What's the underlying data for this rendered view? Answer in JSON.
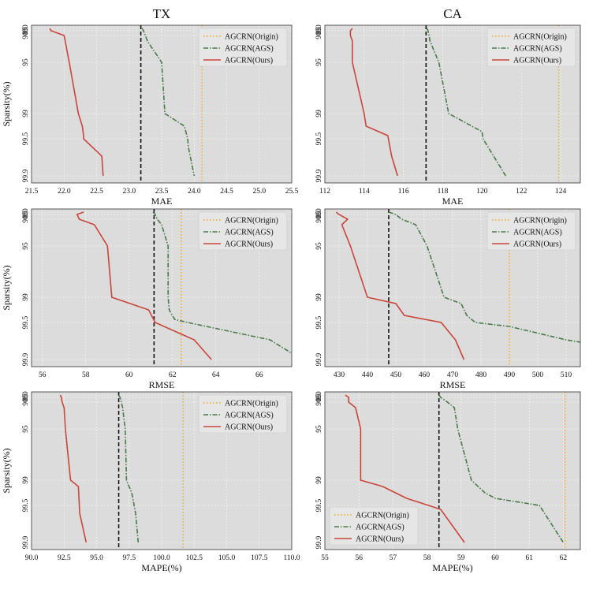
{
  "colors": {
    "origin": "#f5a623",
    "ags": "#4a7a4a",
    "ours": "#c9453a",
    "baseline": "#111111"
  },
  "chart_data": [
    {
      "type": "line",
      "name": "tx-mae",
      "title": "TX",
      "xlabel": "MAE",
      "ylabel": "Sparsity(%)",
      "xlim": [
        21.5,
        25.5
      ],
      "xticks": [
        "21.5",
        "22.0",
        "22.5",
        "23.0",
        "23.5",
        "24.0",
        "24.5",
        "25.0",
        "25.5"
      ],
      "yticks": [
        "80",
        "85",
        "90",
        "95",
        "99",
        "99.5",
        "99.9"
      ],
      "legend_loc": "top-right",
      "series": [
        {
          "name": "AGCRN(Origin)",
          "style": "dotted",
          "vline": 24.12
        },
        {
          "name": "AGCRN(AGS)",
          "style": "dashdot",
          "x": [
            23.2,
            23.22,
            23.25,
            23.28,
            23.5,
            23.55,
            23.85,
            23.9,
            23.91,
            24.0
          ],
          "y": [
            80,
            85,
            90,
            92,
            95,
            99,
            99.2,
            99.5,
            99.6,
            99.9
          ]
        },
        {
          "name": "AGCRN(Ours)",
          "style": "solid",
          "x": [
            21.78,
            21.8,
            22.0,
            22.08,
            22.22,
            22.28,
            22.3,
            22.3,
            22.58,
            22.6
          ],
          "y": [
            80,
            85,
            90,
            95,
            99,
            99.2,
            99.4,
            99.5,
            99.7,
            99.9
          ]
        }
      ],
      "baseline_x": 23.18
    },
    {
      "type": "line",
      "name": "ca-mae",
      "title": "CA",
      "xlabel": "MAE",
      "ylabel": "",
      "xlim": [
        112,
        125
      ],
      "xticks": [
        "112",
        "114",
        "116",
        "118",
        "120",
        "122",
        "124"
      ],
      "yticks": [
        "80",
        "85",
        "90",
        "95",
        "99",
        "99.5",
        "99.9"
      ],
      "legend_loc": "top-right",
      "series": [
        {
          "name": "AGCRN(Origin)",
          "style": "dotted",
          "vline": 123.9
        },
        {
          "name": "AGCRN(AGS)",
          "style": "dashdot",
          "x": [
            117.2,
            117.25,
            117.3,
            117.35,
            117.8,
            118.3,
            120.0,
            120.05,
            121.2
          ],
          "y": [
            80,
            85,
            90,
            92,
            95,
            99,
            99.3,
            99.5,
            99.9
          ]
        },
        {
          "name": "AGCRN(Ours)",
          "style": "solid",
          "x": [
            113.4,
            113.3,
            113.3,
            113.4,
            113.4,
            114.0,
            114.1,
            115.2,
            115.4,
            115.7
          ],
          "y": [
            80,
            85,
            90,
            92,
            95,
            99,
            99.2,
            99.4,
            99.7,
            99.9
          ]
        }
      ],
      "baseline_x": 117.15
    },
    {
      "type": "line",
      "name": "tx-rmse",
      "title": "",
      "xlabel": "RMSE",
      "ylabel": "Sparsity(%)",
      "xlim": [
        55.5,
        67.5
      ],
      "xticks": [
        "56",
        "58",
        "60",
        "62",
        "64",
        "66"
      ],
      "yticks": [
        "80",
        "85",
        "90",
        "95",
        "99",
        "99.5",
        "99.9"
      ],
      "legend_loc": "top-right",
      "series": [
        {
          "name": "AGCRN(Origin)",
          "style": "dotted",
          "vline": 62.4
        },
        {
          "name": "AGCRN(AGS)",
          "style": "dashdot",
          "x": [
            61.1,
            61.2,
            61.3,
            61.5,
            61.8,
            61.8,
            61.85,
            62.1,
            62.7,
            66.5,
            67.6
          ],
          "y": [
            80,
            85,
            90,
            92,
            95,
            99,
            99.2,
            99.4,
            99.5,
            99.7,
            99.85
          ]
        },
        {
          "name": "AGCRN(Ours)",
          "style": "solid",
          "x": [
            57.9,
            57.6,
            57.7,
            58.4,
            59.0,
            59.2,
            60.9,
            61.2,
            63.0,
            63.8
          ],
          "y": [
            80,
            85,
            90,
            92,
            95,
            99,
            99.2,
            99.5,
            99.7,
            99.9
          ]
        }
      ],
      "baseline_x": 61.15
    },
    {
      "type": "line",
      "name": "ca-rmse",
      "title": "",
      "xlabel": "RMSE",
      "ylabel": "",
      "xlim": [
        425,
        515
      ],
      "xticks": [
        "430",
        "440",
        "450",
        "460",
        "470",
        "480",
        "490",
        "500",
        "510"
      ],
      "yticks": [
        "80",
        "85",
        "90",
        "95",
        "99",
        "99.5",
        "99.9"
      ],
      "legend_loc": "top-right",
      "series": [
        {
          "name": "AGCRN(Origin)",
          "style": "dotted",
          "vline": 490
        },
        {
          "name": "AGCRN(AGS)",
          "style": "dashdot",
          "x": [
            447.5,
            450,
            452,
            457,
            461,
            467,
            473,
            475,
            478,
            490,
            510,
            516
          ],
          "y": [
            80,
            85,
            90,
            92,
            95,
            99,
            99.1,
            99.3,
            99.5,
            99.55,
            99.7,
            99.75
          ]
        },
        {
          "name": "AGCRN(Ours)",
          "style": "solid",
          "x": [
            429,
            430,
            433,
            431,
            434,
            440,
            450,
            453,
            466,
            471,
            474
          ],
          "y": [
            80,
            85,
            90,
            92,
            95,
            99,
            99.1,
            99.3,
            99.5,
            99.7,
            99.9
          ]
        }
      ],
      "baseline_x": 447.5
    },
    {
      "type": "line",
      "name": "tx-mape",
      "title": "",
      "xlabel": "MAPE(%)",
      "ylabel": "Sparsity(%)",
      "xlim": [
        90,
        110
      ],
      "xticks": [
        "90.0",
        "92.5",
        "95.0",
        "97.5",
        "100.0",
        "102.5",
        "105.0",
        "107.5",
        "110.0"
      ],
      "yticks": [
        "80",
        "85",
        "90",
        "95",
        "99",
        "99.5",
        "99.9"
      ],
      "legend_loc": "top-right",
      "series": [
        {
          "name": "AGCRN(Origin)",
          "style": "dotted",
          "vline": 101.65
        },
        {
          "name": "AGCRN(AGS)",
          "style": "dashdot",
          "x": [
            96.7,
            96.8,
            96.9,
            97.0,
            97.2,
            97.3,
            97.7,
            98.0,
            98.2
          ],
          "y": [
            80,
            85,
            90,
            92,
            95,
            99,
            99.2,
            99.6,
            99.9
          ]
        },
        {
          "name": "AGCRN(Ours)",
          "style": "solid",
          "x": [
            92.2,
            92.3,
            92.35,
            92.5,
            92.6,
            93.0,
            93.6,
            93.7,
            94.2
          ],
          "y": [
            80,
            85,
            90,
            92,
            95,
            99,
            99.1,
            99.6,
            99.9
          ]
        }
      ],
      "baseline_x": 96.7
    },
    {
      "type": "line",
      "name": "ca-mape",
      "title": "",
      "xlabel": "MAPE(%)",
      "ylabel": "",
      "xlim": [
        55,
        62.5
      ],
      "xticks": [
        "55",
        "56",
        "57",
        "58",
        "59",
        "60",
        "61",
        "62"
      ],
      "yticks": [
        "80",
        "85",
        "90",
        "95",
        "99",
        "99.5",
        "99.9"
      ],
      "legend_loc": "bottom-left",
      "series": [
        {
          "name": "AGCRN(Origin)",
          "style": "dotted",
          "vline": 62.05
        },
        {
          "name": "AGCRN(AGS)",
          "style": "dashdot",
          "x": [
            58.35,
            58.4,
            58.6,
            58.8,
            58.9,
            59.3,
            59.7,
            60.0,
            61.3,
            62.0
          ],
          "y": [
            80,
            85,
            90,
            92,
            95,
            99,
            99.2,
            99.3,
            99.5,
            99.9
          ]
        },
        {
          "name": "AGCRN(Ours)",
          "style": "solid",
          "x": [
            55.6,
            55.7,
            55.7,
            55.9,
            56.05,
            56.05,
            56.7,
            57.4,
            58.4,
            59.1
          ],
          "y": [
            80,
            85,
            90,
            92,
            95,
            99,
            99.1,
            99.3,
            99.55,
            99.9
          ]
        }
      ],
      "baseline_x": 58.35
    }
  ]
}
